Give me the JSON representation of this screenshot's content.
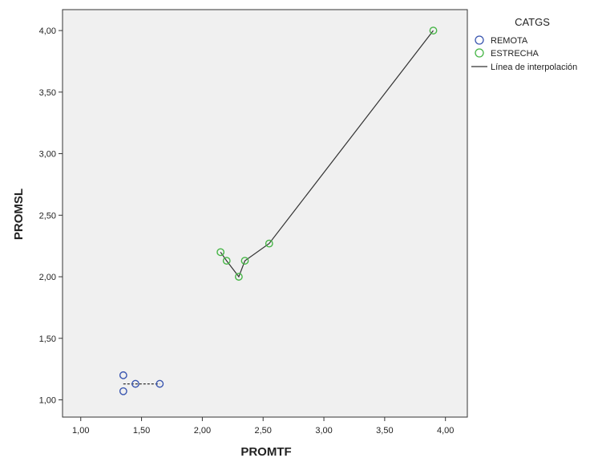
{
  "chart_data": {
    "type": "scatter",
    "xlabel": "PROMTF",
    "ylabel": "PROMSL",
    "xlim": [
      0.85,
      4.18
    ],
    "ylim": [
      0.86,
      4.17
    ],
    "x_ticks": [
      "1,00",
      "1,50",
      "2,00",
      "2,50",
      "3,00",
      "3,50",
      "4,00"
    ],
    "x_tick_values": [
      1.0,
      1.5,
      2.0,
      2.5,
      3.0,
      3.5,
      4.0
    ],
    "y_ticks": [
      "1,00",
      "1,50",
      "2,00",
      "2,50",
      "3,00",
      "3,50",
      "4,00"
    ],
    "y_tick_values": [
      1.0,
      1.5,
      2.0,
      2.5,
      3.0,
      3.5,
      4.0
    ],
    "grid": false,
    "legend": {
      "title": "CATGS",
      "position": "right",
      "entries": [
        "REMOTA",
        "ESTRECHA",
        "Línea de interpolación"
      ]
    },
    "series": [
      {
        "name": "REMOTA",
        "color": "#3a56b0",
        "line_style": "dashed",
        "points": [
          [
            1.35,
            1.2
          ],
          [
            1.35,
            1.07
          ],
          [
            1.45,
            1.13
          ],
          [
            1.65,
            1.13
          ]
        ],
        "interpolation": [
          [
            1.35,
            1.13
          ],
          [
            1.65,
            1.13
          ]
        ]
      },
      {
        "name": "ESTRECHA",
        "color": "#45b545",
        "line_style": "solid",
        "points": [
          [
            2.15,
            2.2
          ],
          [
            2.2,
            2.13
          ],
          [
            2.3,
            2.0
          ],
          [
            2.35,
            2.13
          ],
          [
            2.55,
            2.27
          ],
          [
            3.9,
            4.0
          ]
        ],
        "interpolation": [
          [
            2.15,
            2.2
          ],
          [
            2.2,
            2.13
          ],
          [
            2.3,
            2.0
          ],
          [
            2.35,
            2.13
          ],
          [
            2.55,
            2.27
          ],
          [
            3.9,
            4.0
          ]
        ]
      }
    ],
    "colors": {
      "plot_background": "#f0f0f0",
      "interpolation_line": "#333333"
    }
  }
}
